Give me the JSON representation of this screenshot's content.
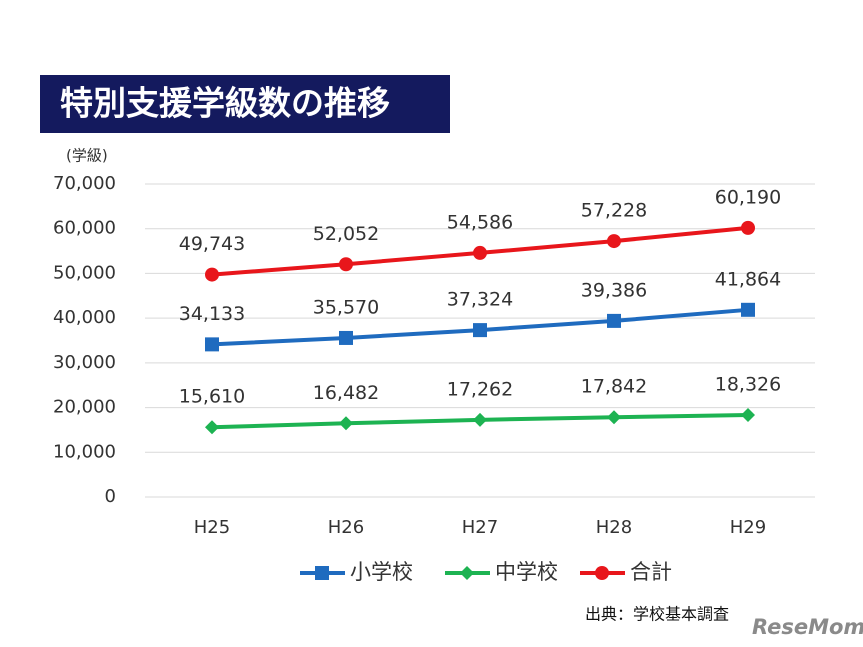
{
  "chart_data": {
    "type": "line",
    "title": "特別支援学級数の推移",
    "y_label": "(学級)",
    "source": "出典：学校基本調査",
    "watermark": "ReseMom",
    "categories": [
      "H25",
      "H26",
      "H27",
      "H28",
      "H29"
    ],
    "series": [
      {
        "name": "小学校",
        "color": "#1f6bbf",
        "marker": "square",
        "values": [
          34133,
          35570,
          37324,
          39386,
          41864
        ],
        "value_labels": [
          "34,133",
          "35,570",
          "37,324",
          "39,386",
          "41,864"
        ]
      },
      {
        "name": "中学校",
        "color": "#1db352",
        "marker": "diamond",
        "values": [
          15610,
          16482,
          17262,
          17842,
          18326
        ],
        "value_labels": [
          "15,610",
          "16,482",
          "17,262",
          "17,842",
          "18,326"
        ]
      },
      {
        "name": "合計",
        "color": "#e8161b",
        "marker": "circle",
        "values": [
          49743,
          52052,
          54586,
          57228,
          60190
        ],
        "value_labels": [
          "49,743",
          "52,052",
          "54,586",
          "57,228",
          "60,190"
        ]
      }
    ],
    "ylim": [
      0,
      70000
    ],
    "yticks": [
      0,
      {
        "value": 10000,
        "label": "10,000"
      },
      {
        "value": 20000,
        "label": "20,000"
      },
      {
        "value": 30000,
        "label": "30,000"
      },
      {
        "value": 40000,
        "label": "40,000"
      },
      {
        "value": 50000,
        "label": "50,000"
      },
      {
        "value": 60000,
        "label": "60,000"
      },
      {
        "value": 70000,
        "label": "70,000"
      }
    ],
    "grid": true
  }
}
